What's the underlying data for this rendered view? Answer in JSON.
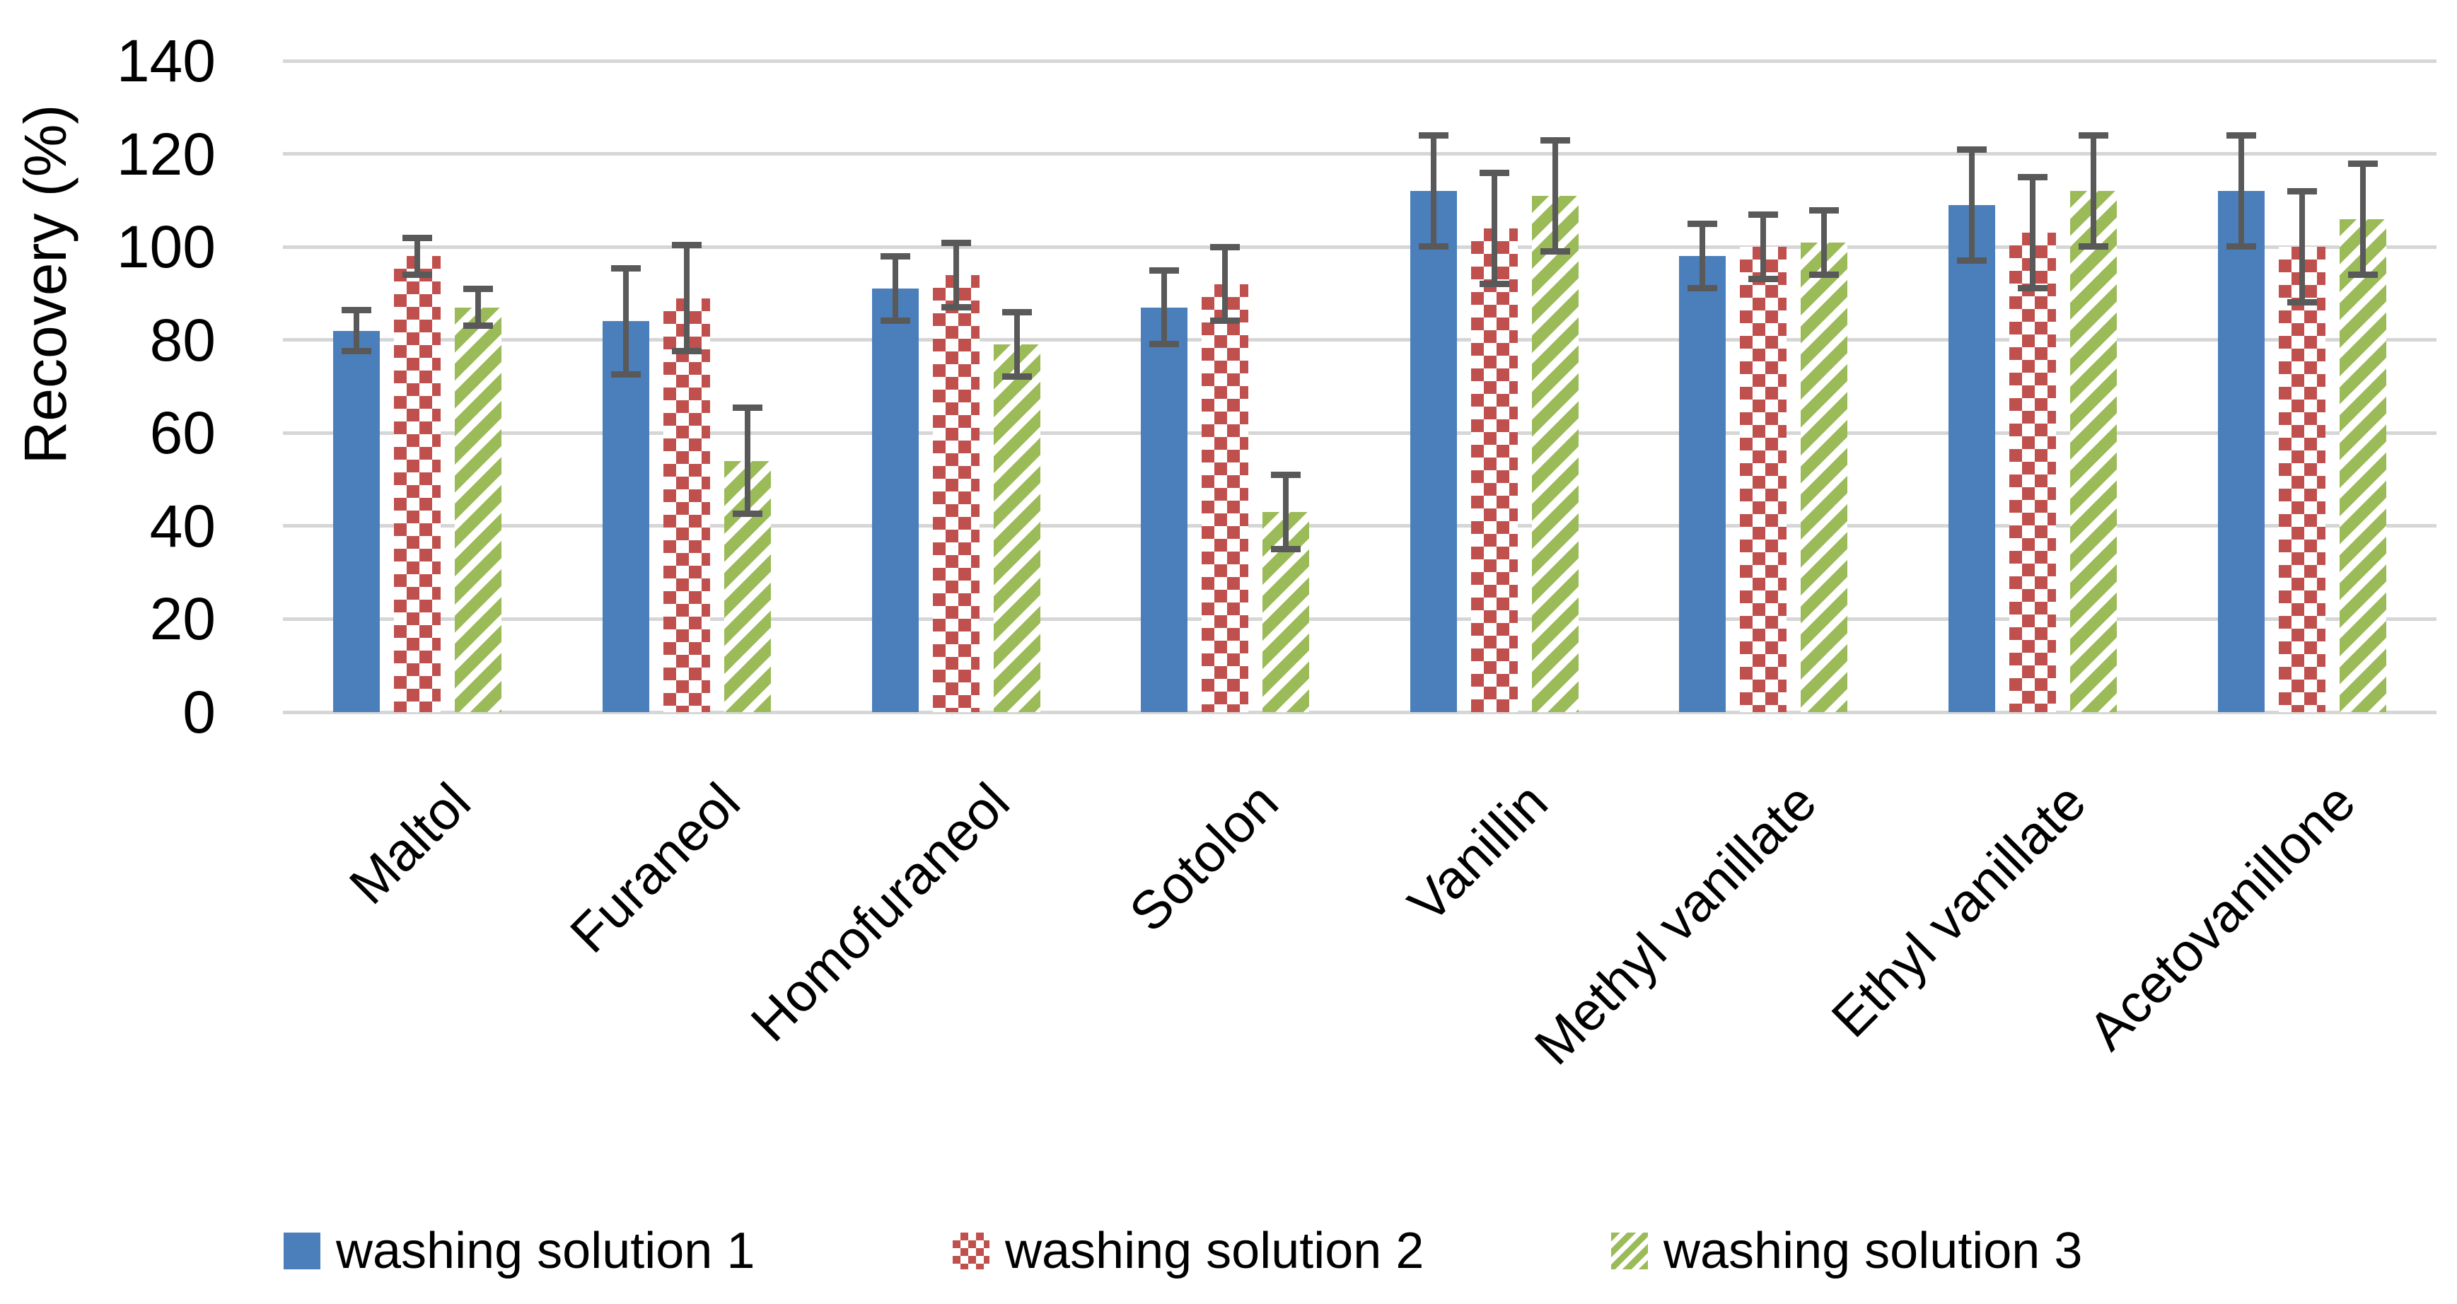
{
  "chart_data": {
    "type": "bar",
    "title": "",
    "ylabel": "Recovery (%)",
    "xlabel": "",
    "ylim": [
      0,
      140
    ],
    "yticks": [
      0,
      20,
      40,
      60,
      80,
      100,
      120,
      140
    ],
    "grid": "horizontal",
    "legend_position": "bottom",
    "categories": [
      "Maltol",
      "Furaneol",
      "Homofuraneol",
      "Sotolon",
      "Vanillin",
      "Methyl vanillate",
      "Ethyl vanillate",
      "Acetovanillone"
    ],
    "series": [
      {
        "name": "washing  solution 1",
        "pattern": "solid",
        "color": "#4B7FBC",
        "values": [
          82,
          84,
          91,
          87,
          112,
          98,
          109,
          112
        ],
        "errors": [
          4.5,
          11.5,
          7,
          8,
          12,
          7,
          12,
          12
        ]
      },
      {
        "name": "washing  solution 2",
        "pattern": "checker",
        "color": "#C0504D",
        "values": [
          98,
          89,
          94,
          92,
          104,
          100,
          103,
          100
        ],
        "errors": [
          4,
          11.5,
          7,
          8,
          12,
          7,
          12,
          12
        ]
      },
      {
        "name": "washing  solution 3",
        "pattern": "diagonal-stripe",
        "color": "#9BBB59",
        "values": [
          87,
          54,
          79,
          43,
          111,
          101,
          112,
          106
        ],
        "errors": [
          4,
          11.5,
          7,
          8,
          12,
          7,
          12,
          12
        ]
      }
    ],
    "error_bar_color": "#595959",
    "gridline_color": "#D6D6D6",
    "axis_text_color": "#000000"
  }
}
